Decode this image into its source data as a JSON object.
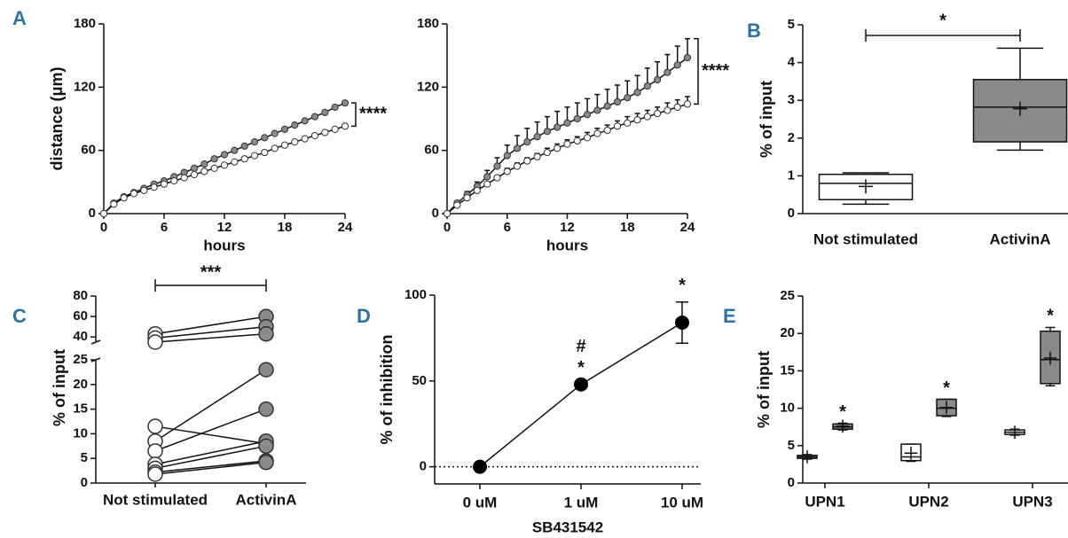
{
  "chart_data": [
    {
      "type": "line",
      "panel": "A",
      "xlabel": "hours",
      "ylabel": "distance (μm)",
      "x": [
        0,
        1,
        2,
        3,
        4,
        5,
        6,
        7,
        8,
        9,
        10,
        11,
        12,
        13,
        14,
        15,
        16,
        17,
        18,
        19,
        20,
        21,
        22,
        23,
        24
      ],
      "xlim": [
        0,
        24
      ],
      "xticks": [
        0,
        6,
        12,
        18,
        24
      ],
      "ylim": [
        0,
        180
      ],
      "yticks": [
        0,
        60,
        120,
        180
      ],
      "annotation": "****",
      "series": [
        {
          "color": "#8a8a8a",
          "values": [
            0,
            10,
            16,
            20,
            24,
            28,
            31,
            35,
            39,
            43,
            47,
            52,
            56,
            60,
            64,
            68,
            72,
            76,
            80,
            84,
            88,
            92,
            96,
            101,
            105
          ]
        },
        {
          "color": "#ffffff",
          "values": [
            0,
            9,
            15,
            19,
            22,
            25,
            28,
            31,
            34,
            37,
            40,
            43,
            46,
            49,
            52,
            55,
            58,
            62,
            65,
            68,
            71,
            74,
            77,
            80,
            83
          ]
        }
      ]
    },
    {
      "type": "line",
      "xlabel": "hours",
      "x": [
        0,
        1,
        2,
        3,
        4,
        5,
        6,
        7,
        8,
        9,
        10,
        11,
        12,
        13,
        14,
        15,
        16,
        17,
        18,
        19,
        20,
        21,
        22,
        23,
        24
      ],
      "xlim": [
        0,
        24
      ],
      "xticks": [
        0,
        6,
        12,
        18,
        24
      ],
      "ylim": [
        0,
        180
      ],
      "yticks": [
        0,
        60,
        120,
        180
      ],
      "annotation": "****",
      "series": [
        {
          "color": "#8a8a8a",
          "values": [
            0,
            10,
            18,
            26,
            35,
            45,
            55,
            62,
            68,
            73,
            78,
            82,
            86,
            90,
            94,
            98,
            102,
            106,
            110,
            115,
            121,
            127,
            134,
            141,
            148
          ],
          "errors": [
            0,
            2,
            3,
            4,
            6,
            8,
            10,
            12,
            13,
            14,
            14,
            15,
            15,
            15,
            15,
            15,
            16,
            16,
            16,
            16,
            17,
            17,
            17,
            18,
            18
          ]
        },
        {
          "color": "#ffffff",
          "values": [
            0,
            8,
            15,
            22,
            28,
            34,
            40,
            45,
            50,
            54,
            58,
            62,
            66,
            69,
            72,
            76,
            79,
            83,
            86,
            89,
            92,
            95,
            98,
            101,
            104
          ],
          "errors": [
            0,
            1,
            1,
            2,
            2,
            2,
            3,
            3,
            3,
            3,
            4,
            4,
            4,
            4,
            5,
            5,
            5,
            5,
            6,
            6,
            6,
            6,
            7,
            7,
            7
          ]
        }
      ]
    },
    {
      "type": "box",
      "panel": "B",
      "ylabel": "% of input",
      "categories": [
        "Not stimulated",
        "ActivinA"
      ],
      "ylim": [
        0,
        5
      ],
      "yticks": [
        0,
        1,
        2,
        3,
        4,
        5
      ],
      "annotation": "*",
      "boxes": [
        {
          "color": "#ffffff",
          "whislo": 0.25,
          "q1": 0.37,
          "med": 0.8,
          "q3": 1.04,
          "whishi": 1.08,
          "mean": 0.72
        },
        {
          "color": "#8a8a8a",
          "whislo": 1.68,
          "q1": 1.9,
          "med": 2.82,
          "q3": 3.55,
          "whishi": 4.38,
          "mean": 2.78
        }
      ]
    },
    {
      "type": "paired",
      "panel": "C",
      "ylabel": "% of input",
      "categories": [
        "Not stimulated",
        "ActivinA"
      ],
      "ylim": [
        0,
        25
      ],
      "yticks": [
        0,
        5,
        10,
        15,
        20,
        25
      ],
      "y_upper_lim": [
        35,
        80
      ],
      "y_upper_ticks": [
        40,
        60,
        80
      ],
      "annotation": "***",
      "colors": [
        "#ffffff",
        "#8a8a8a"
      ],
      "pairs": [
        [
          43,
          60
        ],
        [
          39,
          50
        ],
        [
          35,
          43
        ],
        [
          11.5,
          8
        ],
        [
          8.5,
          23
        ],
        [
          6.5,
          15
        ],
        [
          3.8,
          8.5
        ],
        [
          3,
          7.5
        ],
        [
          2.2,
          4.5
        ],
        [
          1.8,
          4.2
        ]
      ]
    },
    {
      "type": "errorline",
      "panel": "D",
      "ylabel": "% of inhibition",
      "xlabel": "SB431542",
      "categories": [
        "0 uM",
        "1 uM",
        "10 uM"
      ],
      "values": [
        0,
        48,
        84
      ],
      "errors": [
        0,
        0,
        12
      ],
      "ylim": [
        -10,
        100
      ],
      "yticks": [
        0,
        50,
        100
      ],
      "zero_line": true,
      "color": "#000000",
      "point_labels": [
        null,
        [
          "*",
          "#"
        ],
        [
          "*"
        ]
      ]
    },
    {
      "type": "grouped_box",
      "panel": "E",
      "ylabel": "% of input",
      "categories": [
        "UPN1",
        "UPN2",
        "UPN3"
      ],
      "ylim": [
        0,
        25
      ],
      "yticks": [
        0,
        5,
        10,
        15,
        20,
        25
      ],
      "series": [
        {
          "color": "#ffffff",
          "boxes": [
            {
              "whislo": 3.2,
              "q1": 3.3,
              "med": 3.5,
              "q3": 3.7,
              "whishi": 3.8,
              "mean": 3.5
            },
            {
              "whislo": 2.9,
              "q1": 3.0,
              "med": 3.5,
              "q3": 5.2,
              "whishi": 5.2,
              "mean": 4.0
            },
            {
              "whislo": 6.4,
              "q1": 6.5,
              "med": 6.8,
              "q3": 7.1,
              "whishi": 7.2,
              "mean": 6.8
            }
          ]
        },
        {
          "color": "#8a8a8a",
          "marker_labels": [
            "*",
            "*",
            "*"
          ],
          "boxes": [
            {
              "whislo": 7.1,
              "q1": 7.2,
              "med": 7.5,
              "q3": 7.9,
              "whishi": 8.0,
              "mean": 7.6
            },
            {
              "whislo": 8.9,
              "q1": 9.0,
              "med": 10.0,
              "q3": 11.2,
              "whishi": 11.2,
              "mean": 10.1
            },
            {
              "whislo": 13.0,
              "q1": 13.3,
              "med": 16.5,
              "q3": 20.3,
              "whishi": 20.8,
              "mean": 16.7
            }
          ]
        }
      ]
    }
  ]
}
